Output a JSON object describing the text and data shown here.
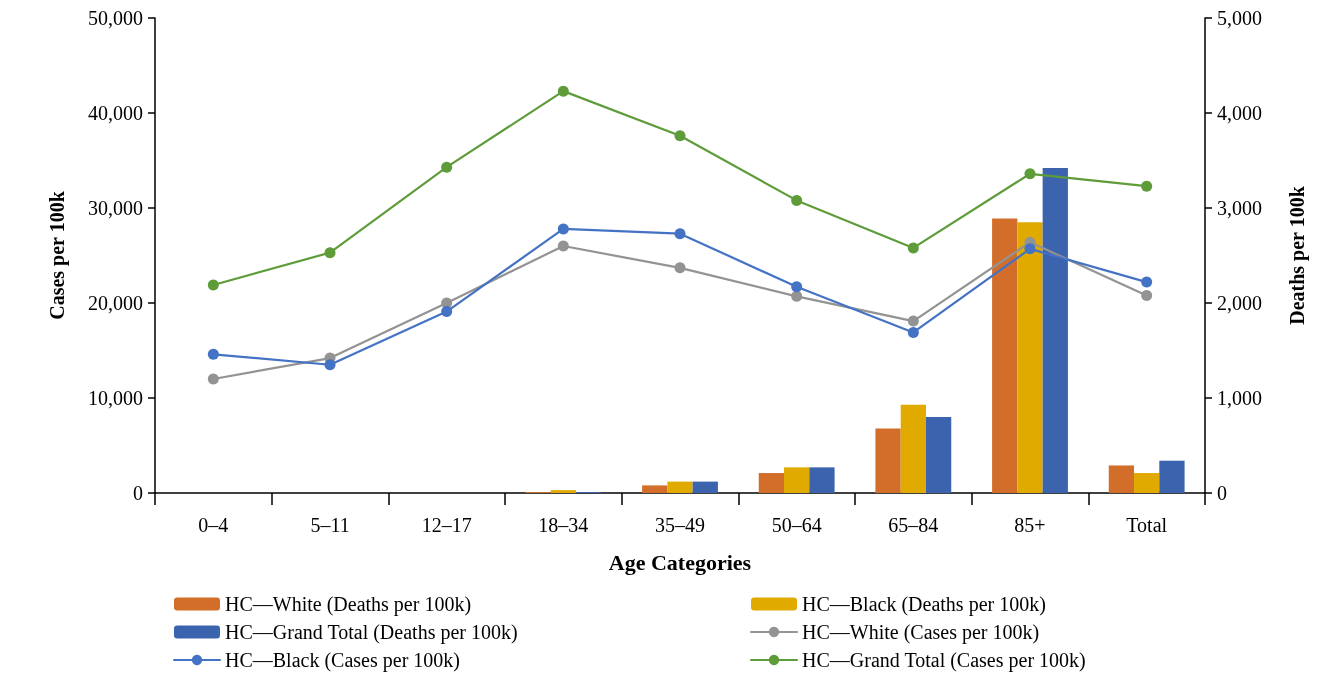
{
  "chart_data": {
    "type": "bar",
    "xlabel": "Age Categories",
    "ylabel": "Cases per 100k",
    "y2label": "Deaths per 100k",
    "categories": [
      "0–4",
      "5–11",
      "12–17",
      "18–34",
      "35–49",
      "50–64",
      "65–84",
      "85+",
      "Total"
    ],
    "series": [
      {
        "name": "HC—White (Deaths per 100k)",
        "axis": "y2",
        "color": "#d36e2a",
        "values": [
          0,
          0,
          0,
          10,
          80,
          210,
          680,
          2890,
          290
        ]
      },
      {
        "name": "HC—Black (Deaths per 100k)",
        "axis": "y2",
        "color": "#e0aa00",
        "values": [
          0,
          0,
          0,
          30,
          120,
          270,
          930,
          2850,
          210
        ]
      },
      {
        "name": "HC—Grand Total (Deaths per 100k)",
        "axis": "y2",
        "color": "#3c63ad",
        "values": [
          0,
          0,
          0,
          10,
          120,
          270,
          800,
          3420,
          340
        ]
      },
      {
        "name": "HC—White (Cases per 100k)",
        "type": "line",
        "color": "#939393",
        "values": [
          12000,
          14200,
          20000,
          26000,
          23700,
          20700,
          18100,
          26400,
          20800
        ]
      },
      {
        "name": "HC—Black (Cases per 100k)",
        "type": "line",
        "color": "#4472c4",
        "values": [
          14600,
          13500,
          19100,
          27800,
          27300,
          21700,
          16900,
          25700,
          22200
        ]
      },
      {
        "name": "HC—Grand Total (Cases per 100k)",
        "type": "line",
        "color": "#5e9c3a",
        "values": [
          21900,
          25300,
          34300,
          42300,
          37600,
          30800,
          25800,
          33600,
          32300
        ]
      }
    ],
    "ylim": [
      0,
      50000
    ],
    "yticks": [
      0,
      {
        "value": 10000,
        "label": "10,000"
      },
      {
        "value": 20000,
        "label": "20,000"
      },
      {
        "value": 30000,
        "label": "30,000"
      },
      {
        "value": 40000,
        "label": "40,000"
      },
      {
        "value": 50000,
        "label": "50,000"
      }
    ],
    "y2lim": [
      0,
      5000
    ],
    "y2ticks": [
      0,
      {
        "value": 1000,
        "label": "1,000"
      },
      {
        "value": 2000,
        "label": "2,000"
      },
      {
        "value": 3000,
        "label": "3,000"
      },
      {
        "value": 4000,
        "label": "4,000"
      },
      {
        "value": 5000,
        "label": "5,000"
      }
    ],
    "grid": false,
    "legend": "bottom",
    "marker": "circle",
    "line_style": "solid"
  }
}
